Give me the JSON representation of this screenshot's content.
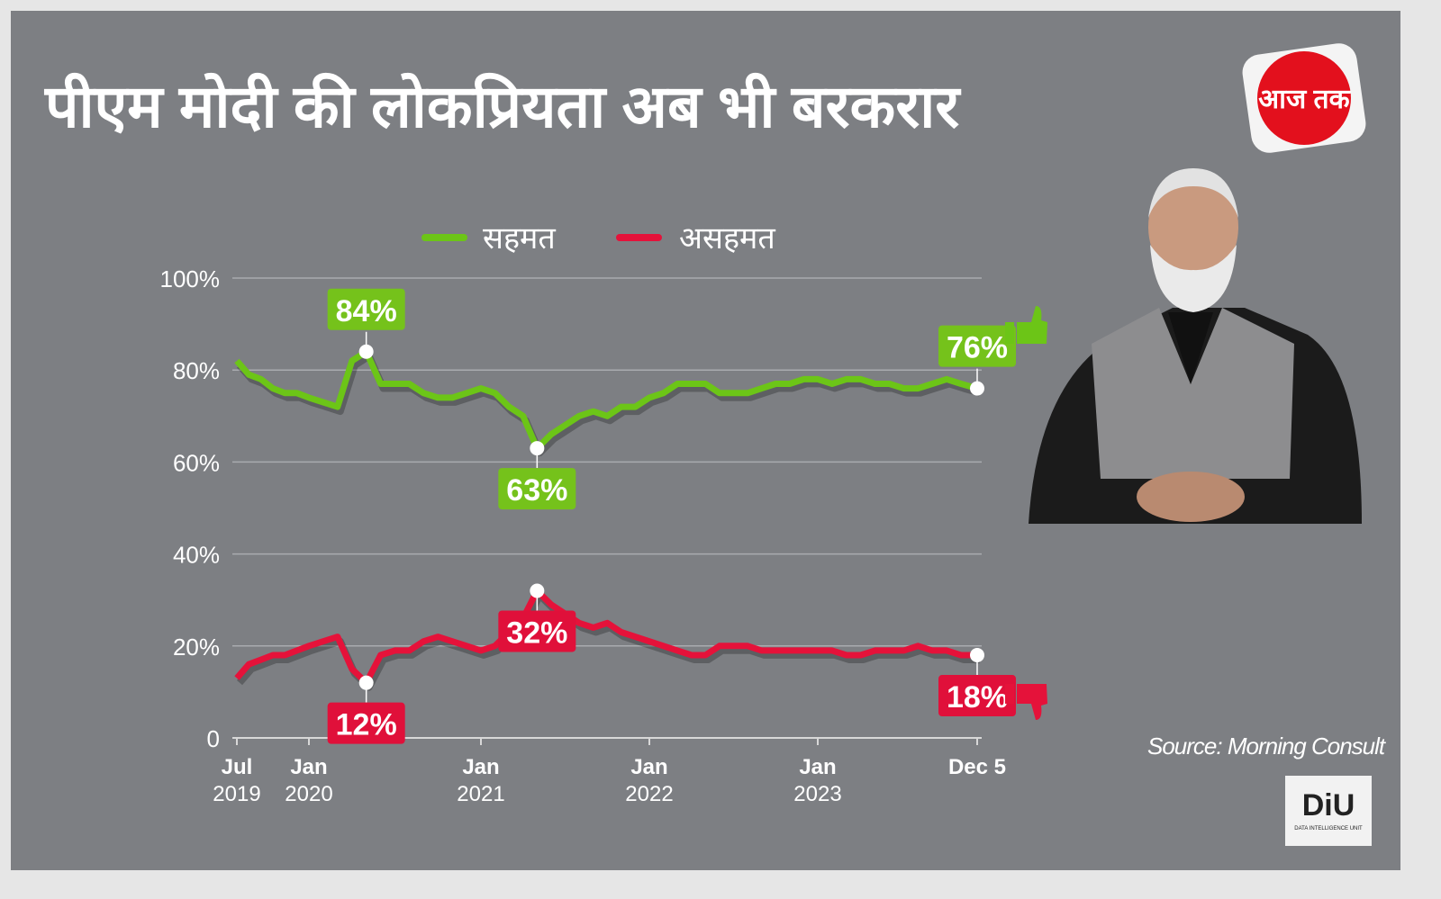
{
  "title": "पीएम मोदी की लोकप्रियता अब भी बरकरार",
  "source": "Source: Morning Consult",
  "logos": {
    "aajtak": "आज तक",
    "diu": "DiU",
    "diu_sub": "DATA INTELLIGENCE UNIT"
  },
  "colors": {
    "background": "#7d7f83",
    "approve": "#6cc517",
    "disapprove": "#e5123a",
    "label_approve": "#75c21b",
    "label_disapprove": "#e0103a"
  },
  "chart_data": {
    "type": "line",
    "title": "पीएम मोदी की लोकप्रियता अब भी बरकरार",
    "xlabel": "",
    "ylabel": "",
    "ylim": [
      0,
      100
    ],
    "grid": true,
    "legend_placement": "top",
    "yticks": [
      "0",
      "20%",
      "40%",
      "60%",
      "80%",
      "100%"
    ],
    "ytick_values": [
      0,
      20,
      40,
      60,
      80,
      100
    ],
    "xticks": [
      {
        "date": "2019-07",
        "line1": "Jul",
        "line2": "2019"
      },
      {
        "date": "2020-01",
        "line1": "Jan",
        "line2": "2020"
      },
      {
        "date": "2021-01",
        "line1": "Jan",
        "line2": "2021"
      },
      {
        "date": "2022-01",
        "line1": "Jan",
        "line2": "2022"
      },
      {
        "date": "2023-01",
        "line1": "Jan",
        "line2": "2023"
      },
      {
        "date": "2023-12-05",
        "line1": "Dec 5",
        "line2": ""
      }
    ],
    "x": [
      "2019-07",
      "2019-08",
      "2019-09",
      "2019-10",
      "2019-11",
      "2019-12",
      "2020-01",
      "2020-02",
      "2020-03",
      "2020-04",
      "2020-05",
      "2020-06",
      "2020-07",
      "2020-08",
      "2020-09",
      "2020-10",
      "2020-11",
      "2020-12",
      "2021-01",
      "2021-02",
      "2021-03",
      "2021-04",
      "2021-05",
      "2021-06",
      "2021-07",
      "2021-08",
      "2021-09",
      "2021-10",
      "2021-11",
      "2021-12",
      "2022-01",
      "2022-02",
      "2022-03",
      "2022-04",
      "2022-05",
      "2022-06",
      "2022-07",
      "2022-08",
      "2022-09",
      "2022-10",
      "2022-11",
      "2022-12",
      "2023-01",
      "2023-02",
      "2023-03",
      "2023-04",
      "2023-05",
      "2023-06",
      "2023-07",
      "2023-08",
      "2023-09",
      "2023-10",
      "2023-11",
      "2023-12-05"
    ],
    "series": [
      {
        "name": "सहमत",
        "color": "#6cc517",
        "values": [
          82,
          79,
          78,
          76,
          75,
          75,
          74,
          73,
          72,
          82,
          84,
          77,
          77,
          77,
          75,
          74,
          74,
          75,
          76,
          75,
          72,
          70,
          63,
          66,
          68,
          70,
          71,
          70,
          72,
          72,
          74,
          75,
          77,
          77,
          77,
          75,
          75,
          75,
          76,
          77,
          77,
          78,
          78,
          77,
          78,
          78,
          77,
          77,
          76,
          76,
          77,
          78,
          77,
          76
        ]
      },
      {
        "name": "असहमत",
        "color": "#e5123a",
        "values": [
          13,
          16,
          17,
          18,
          18,
          19,
          20,
          21,
          22,
          15,
          12,
          18,
          19,
          19,
          21,
          22,
          21,
          20,
          19,
          20,
          23,
          26,
          32,
          29,
          27,
          25,
          24,
          25,
          23,
          22,
          21,
          20,
          19,
          18,
          18,
          20,
          20,
          20,
          19,
          19,
          19,
          19,
          19,
          19,
          18,
          18,
          19,
          19,
          19,
          20,
          19,
          19,
          18,
          18
        ]
      }
    ],
    "annotations": [
      {
        "series": 0,
        "date": "2020-05",
        "value": 84,
        "label": "84%",
        "position": "above"
      },
      {
        "series": 0,
        "date": "2021-05",
        "value": 63,
        "label": "63%",
        "position": "below"
      },
      {
        "series": 0,
        "date": "2023-12-05",
        "value": 76,
        "label": "76%",
        "position": "above"
      },
      {
        "series": 1,
        "date": "2020-05",
        "value": 12,
        "label": "12%",
        "position": "below"
      },
      {
        "series": 1,
        "date": "2021-05",
        "value": 32,
        "label": "32%",
        "position": "below"
      },
      {
        "series": 1,
        "date": "2023-12-05",
        "value": 18,
        "label": "18%",
        "position": "below"
      }
    ]
  }
}
